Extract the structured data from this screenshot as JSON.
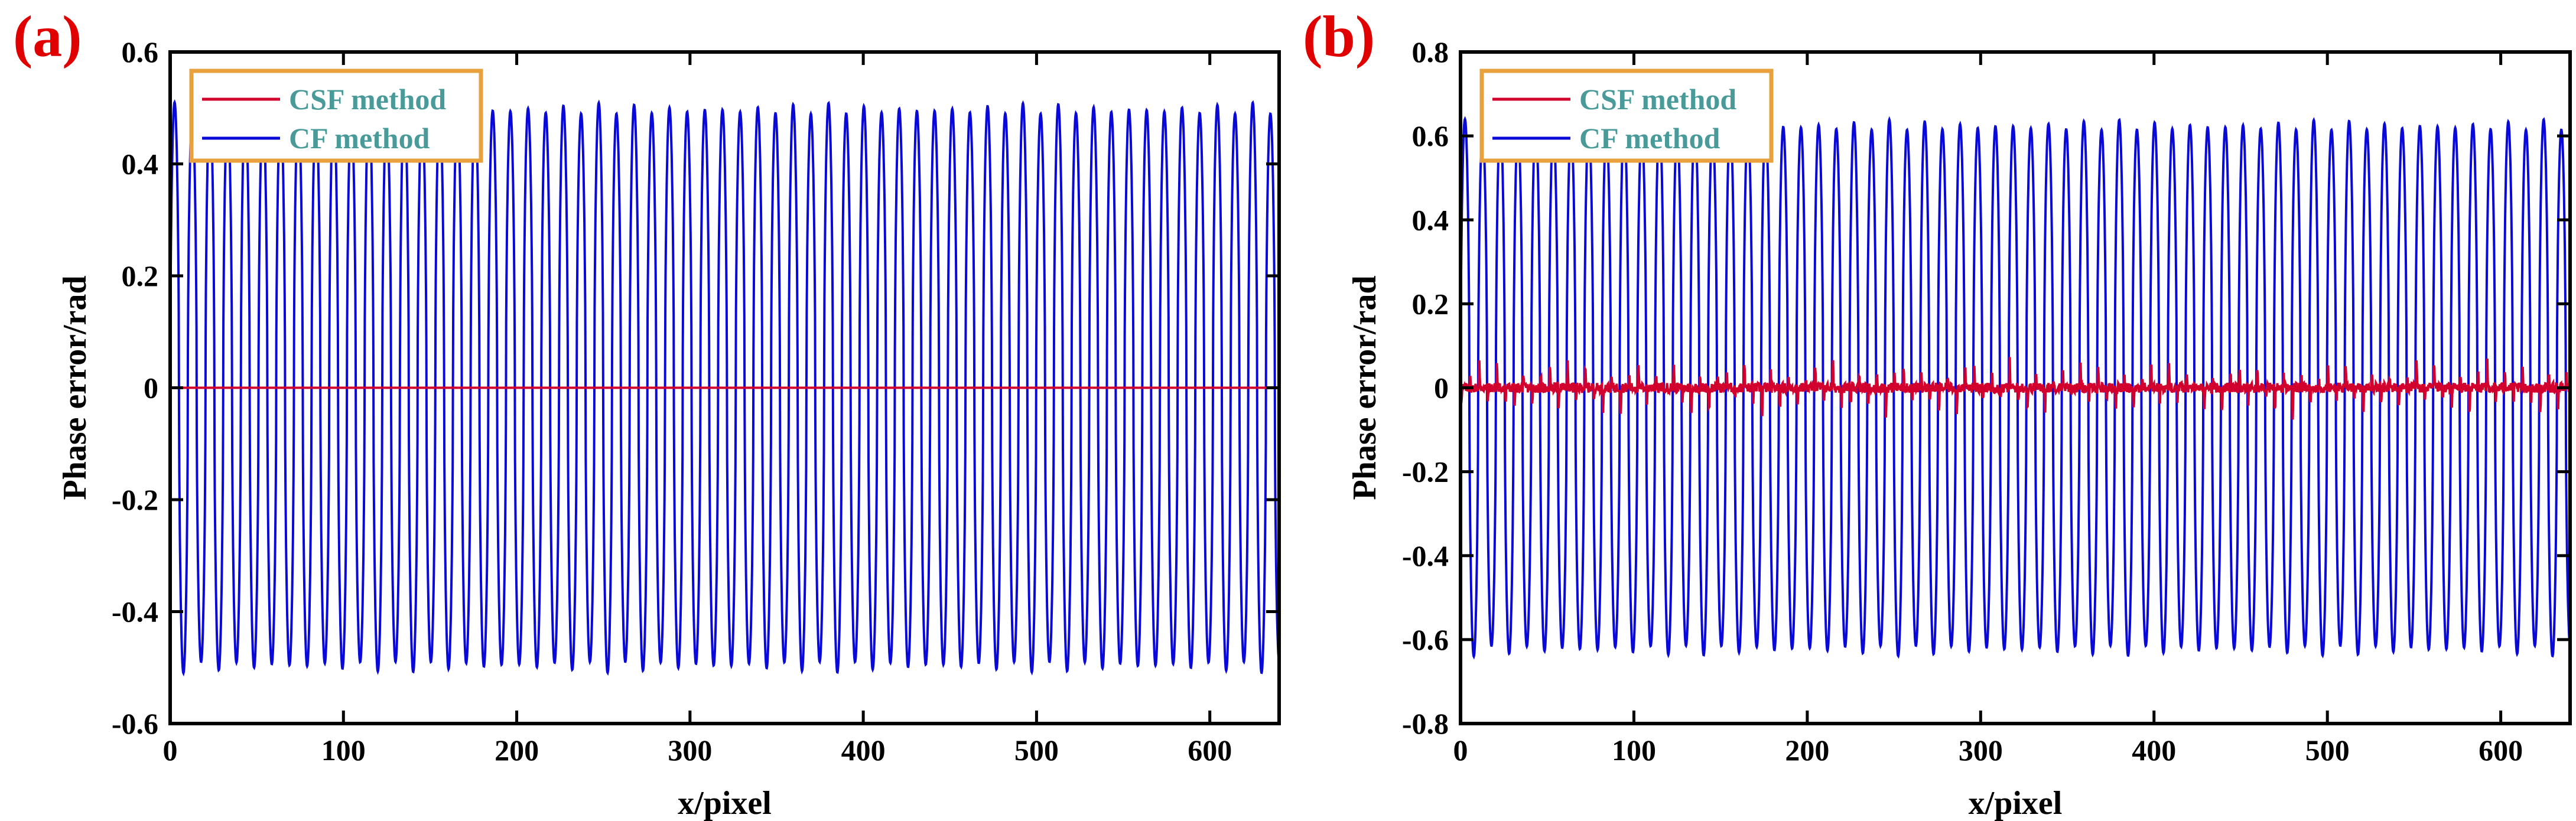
{
  "colors": {
    "csf": "#d1002d",
    "cf": "#0a0ad8",
    "panel_label": "#e00000",
    "legend_border": "#e8a13c",
    "legend_text": "#4a9a9a"
  },
  "chart_data": [
    {
      "type": "line",
      "panel_label": "(a)",
      "xlabel": "x/pixel",
      "ylabel": "Phase error/rad",
      "xlim": [
        0,
        640
      ],
      "ylim": [
        -0.6,
        0.6
      ],
      "x_ticks": [
        0,
        100,
        200,
        300,
        400,
        500,
        600
      ],
      "y_ticks": [
        -0.6,
        -0.4,
        -0.2,
        0,
        0.2,
        0.4,
        0.6
      ],
      "y_tick_labels": [
        "-0.6",
        "-0.4",
        "-0.2",
        "0",
        "0.2",
        "0.4",
        "0.6"
      ],
      "grid": false,
      "legend_position": "top-left",
      "series": [
        {
          "name": "CSF method",
          "kind": "flat",
          "value": 0
        },
        {
          "name": "CF method",
          "kind": "oscillation",
          "period": 10.2,
          "amplitude": 0.51,
          "x_start": 0,
          "x_end": 640
        }
      ]
    },
    {
      "type": "line",
      "panel_label": "(b)",
      "xlabel": "x/pixel",
      "ylabel": "Phase error/rad",
      "xlim": [
        0,
        640
      ],
      "ylim": [
        -0.8,
        0.8
      ],
      "x_ticks": [
        0,
        100,
        200,
        300,
        400,
        500,
        600
      ],
      "y_ticks": [
        -0.8,
        -0.6,
        -0.4,
        -0.2,
        0,
        0.2,
        0.4,
        0.6,
        0.8
      ],
      "y_tick_labels": [
        "-0.8",
        "-0.6",
        "-0.4",
        "-0.2",
        "0",
        "0.2",
        "0.4",
        "0.6",
        "0.8"
      ],
      "grid": false,
      "legend_position": "top-left",
      "series": [
        {
          "name": "CSF method",
          "kind": "spiky",
          "period": 10.2,
          "spike_amplitude": 0.07,
          "noise": 0.012,
          "x_start": 0,
          "x_end": 640
        },
        {
          "name": "CF method",
          "kind": "oscillation",
          "period": 10.2,
          "amplitude": 0.64,
          "x_start": 0,
          "x_end": 640
        }
      ]
    }
  ]
}
